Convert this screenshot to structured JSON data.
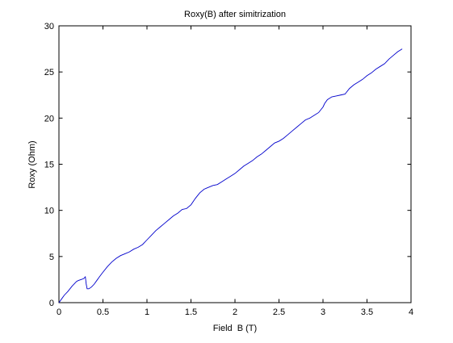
{
  "chart_data": {
    "type": "line",
    "title": "Roxy(B) after simitrization",
    "xlabel": "Field  B (T)",
    "ylabel": "Roxy (Ohm)",
    "xlim": [
      0,
      4
    ],
    "ylim": [
      0,
      30
    ],
    "xticks": [
      0,
      0.5,
      1,
      1.5,
      2,
      2.5,
      3,
      3.5,
      4
    ],
    "xtick_labels": [
      "0",
      "0.5",
      "1",
      "1.5",
      "2",
      "2.5",
      "3",
      "3.5",
      "4"
    ],
    "yticks": [
      0,
      5,
      10,
      15,
      20,
      25,
      30
    ],
    "ytick_labels": [
      "0",
      "5",
      "10",
      "15",
      "20",
      "25",
      "30"
    ],
    "grid": false,
    "line_color": "#0000cc",
    "series": [
      {
        "x": [
          0.0,
          0.03,
          0.06,
          0.1,
          0.15,
          0.2,
          0.22,
          0.25,
          0.28,
          0.3,
          0.31,
          0.32,
          0.34,
          0.37,
          0.4,
          0.43,
          0.46,
          0.5,
          0.55,
          0.6,
          0.65,
          0.7,
          0.75,
          0.8,
          0.85,
          0.9,
          0.95,
          1.0,
          1.05,
          1.1,
          1.15,
          1.2,
          1.25,
          1.3,
          1.35,
          1.4,
          1.45,
          1.5,
          1.55,
          1.6,
          1.65,
          1.7,
          1.75,
          1.8,
          1.85,
          1.9,
          1.95,
          2.0,
          2.05,
          2.1,
          2.15,
          2.2,
          2.25,
          2.3,
          2.35,
          2.4,
          2.45,
          2.5,
          2.55,
          2.6,
          2.65,
          2.7,
          2.75,
          2.8,
          2.85,
          2.9,
          2.95,
          3.0,
          3.02,
          3.05,
          3.1,
          3.15,
          3.2,
          3.25,
          3.3,
          3.35,
          3.4,
          3.45,
          3.5,
          3.55,
          3.6,
          3.65,
          3.7,
          3.75,
          3.8,
          3.85,
          3.9
        ],
        "y": [
          0.0,
          0.4,
          0.8,
          1.2,
          1.8,
          2.3,
          2.4,
          2.5,
          2.6,
          2.8,
          2.0,
          1.5,
          1.5,
          1.7,
          2.0,
          2.4,
          2.8,
          3.3,
          3.9,
          4.4,
          4.8,
          5.1,
          5.3,
          5.5,
          5.8,
          6.0,
          6.3,
          6.8,
          7.3,
          7.8,
          8.2,
          8.6,
          9.0,
          9.4,
          9.7,
          10.1,
          10.2,
          10.6,
          11.3,
          11.9,
          12.3,
          12.5,
          12.7,
          12.8,
          13.1,
          13.4,
          13.7,
          14.0,
          14.4,
          14.8,
          15.1,
          15.4,
          15.8,
          16.1,
          16.5,
          16.9,
          17.3,
          17.5,
          17.8,
          18.2,
          18.6,
          19.0,
          19.4,
          19.8,
          20.0,
          20.3,
          20.6,
          21.2,
          21.6,
          22.0,
          22.3,
          22.4,
          22.5,
          22.6,
          23.2,
          23.6,
          23.9,
          24.2,
          24.6,
          24.9,
          25.3,
          25.6,
          25.9,
          26.4,
          26.8,
          27.2,
          27.5
        ]
      }
    ]
  }
}
